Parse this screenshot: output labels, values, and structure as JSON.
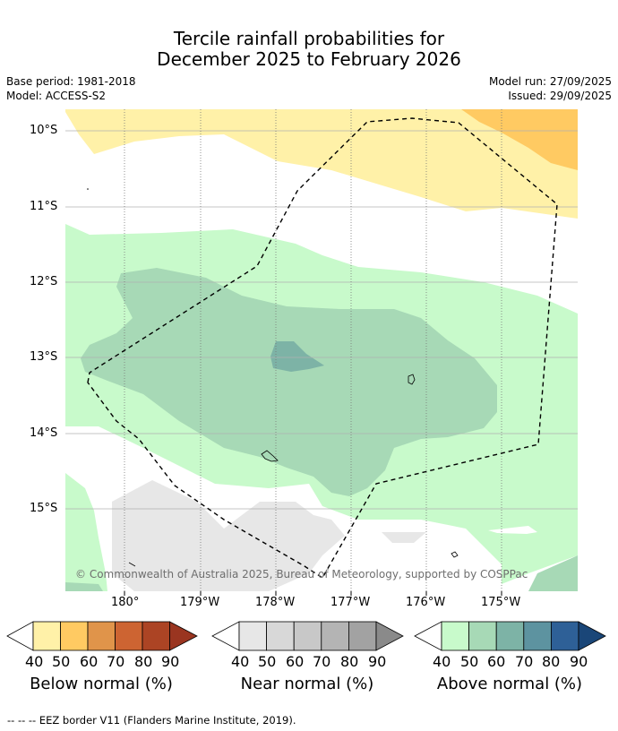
{
  "title_line1": "Tercile rainfall probabilities for",
  "title_line2": "December 2025 to February 2026",
  "base_period": "Base period: 1981-2018",
  "model": "Model: ACCESS-S2",
  "model_run": "Model run: 27/09/2025",
  "issued": "Issued: 29/09/2025",
  "lat_ticks": [
    "10°S",
    "11°S",
    "12°S",
    "13°S",
    "14°S",
    "15°S"
  ],
  "lon_ticks": [
    "180°",
    "179°W",
    "178°W",
    "177°W",
    "176°W",
    "175°W"
  ],
  "copyright": "© Commonwealth of Australia 2025, Bureau of Meteorology, supported by COSPPac",
  "colorbars": [
    {
      "caption": "Below normal (%)",
      "labels": [
        "40",
        "50",
        "60",
        "70",
        "80",
        "90"
      ],
      "colors": [
        "#fff1a8",
        "#ffca62",
        "#e0944a",
        "#cd6432",
        "#ac4424",
        "#9a3520"
      ]
    },
    {
      "caption": "Near normal (%)",
      "labels": [
        "40",
        "50",
        "60",
        "70",
        "80",
        "90"
      ],
      "colors": [
        "#e7e7e7",
        "#d8d8d8",
        "#c8c8c8",
        "#b4b4b4",
        "#a2a2a2",
        "#8a8a8a"
      ]
    },
    {
      "caption": "Above normal (%)",
      "labels": [
        "40",
        "50",
        "60",
        "70",
        "80",
        "90"
      ],
      "colors": [
        "#c8facb",
        "#a7d9b6",
        "#7db3a6",
        "#5d93a0",
        "#2e6097",
        "#1a4678"
      ]
    }
  ],
  "footnote": "--  --  -- EEZ border V11 (Flanders Marine Institute, 2019)."
}
